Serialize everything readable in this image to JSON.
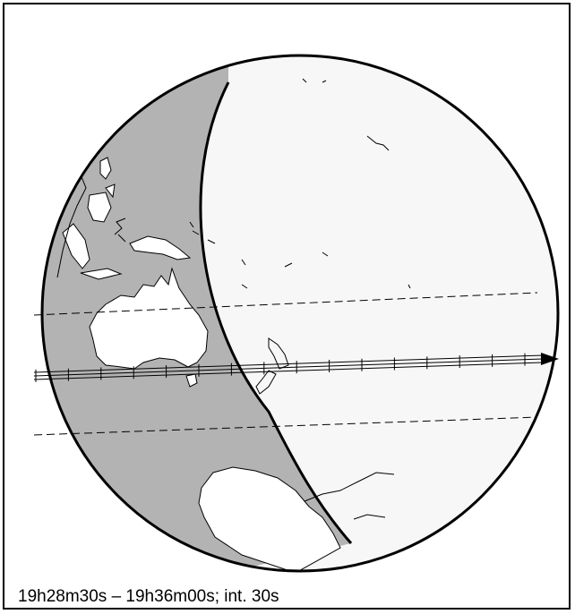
{
  "caption": "19h28m30s – 19h36m00s; int. 30s",
  "track": {
    "interval_seconds": 30,
    "start": "19h28m30s",
    "end": "19h36m00s",
    "tick_count": 16
  },
  "colors": {
    "night_side": "#b3b3b3",
    "day_side": "#f7f7f7",
    "land_night": "#ffffff",
    "land_day": "#f7f7f7",
    "outline": "#000000"
  }
}
